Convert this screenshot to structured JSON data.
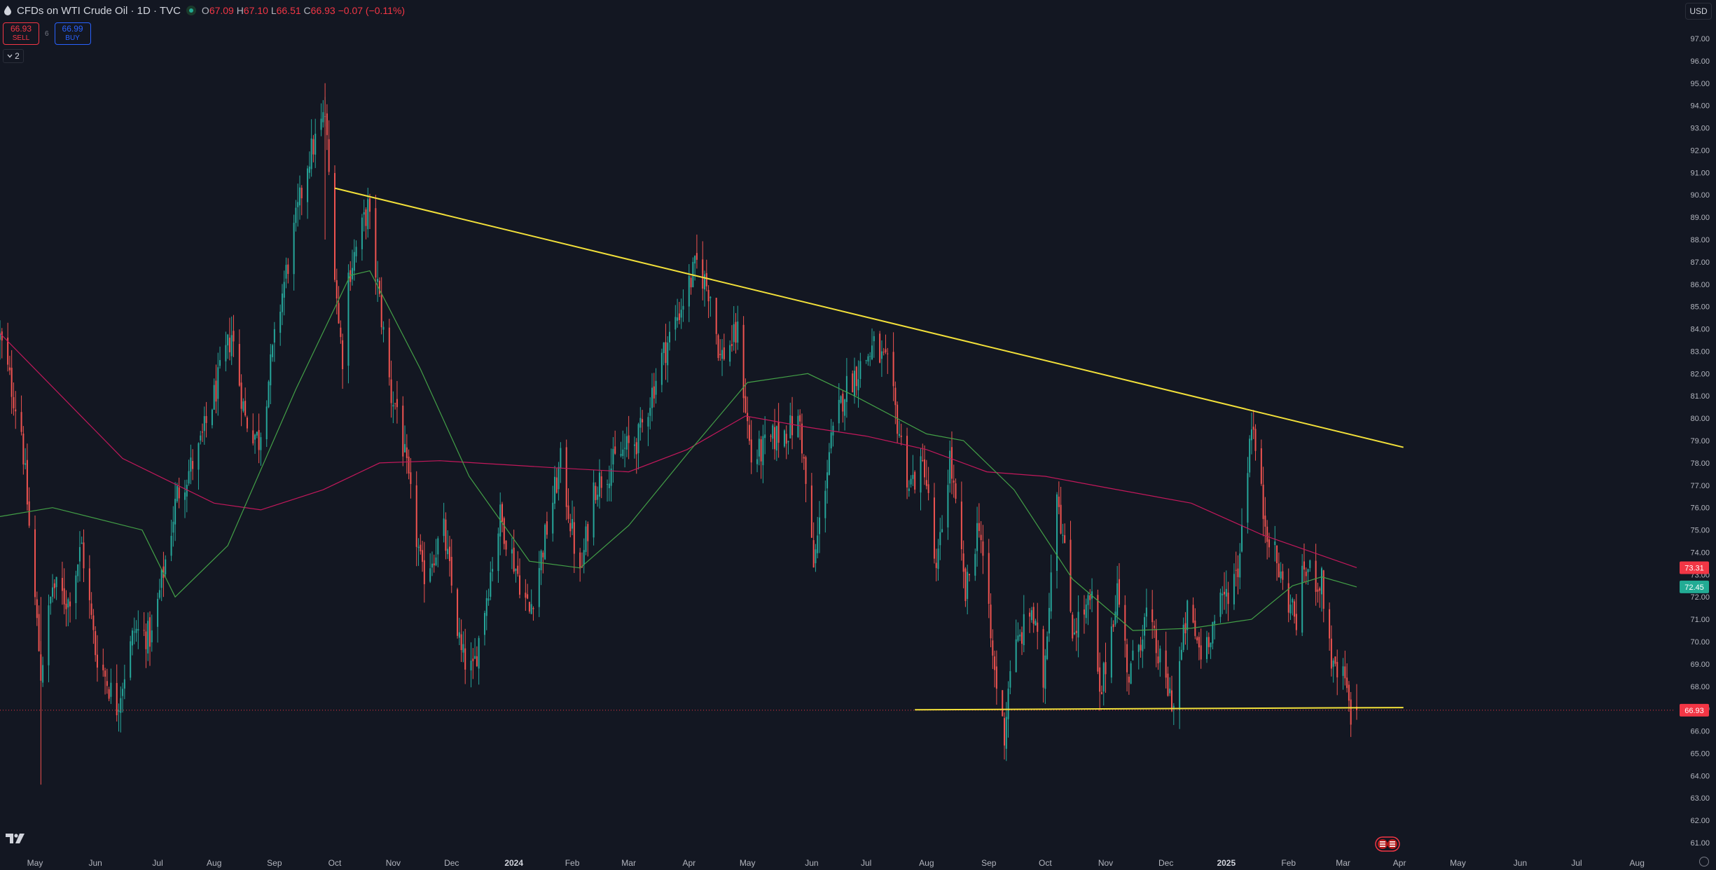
{
  "header": {
    "symbol": "CFDs on WTI Crude Oil · 1D · TVC",
    "o_label": "O",
    "o_value": "67.09",
    "h_label": "H",
    "h_value": "67.10",
    "l_label": "L",
    "l_value": "66.51",
    "c_label": "C",
    "c_value": "66.93",
    "change": "−0.07 (−0.11%)"
  },
  "trade": {
    "sell_price": "66.93",
    "sell_label": "SELL",
    "spread": "6",
    "buy_price": "66.99",
    "buy_label": "BUY"
  },
  "indicators_toggle": "2",
  "currency": "USD",
  "colors": {
    "background": "#131722",
    "up_candle": "#26a69a",
    "down_candle": "#ef5350",
    "trendline": "#f2e03a",
    "ma_red": "#c2185b",
    "ma_green": "#43a047",
    "price_label": "#f23645",
    "green_label": "#22ab94"
  },
  "chart_data": {
    "type": "candlestick",
    "ylim": [
      60.5,
      98
    ],
    "y_ticks": [
      "61.00",
      "62.00",
      "63.00",
      "64.00",
      "65.00",
      "66.00",
      "67.00",
      "68.00",
      "69.00",
      "70.00",
      "71.00",
      "72.00",
      "73.00",
      "74.00",
      "75.00",
      "76.00",
      "77.00",
      "78.00",
      "79.00",
      "80.00",
      "81.00",
      "82.00",
      "83.00",
      "84.00",
      "85.00",
      "86.00",
      "87.00",
      "88.00",
      "89.00",
      "90.00",
      "91.00",
      "92.00",
      "93.00",
      "94.00",
      "95.00",
      "96.00",
      "97.00"
    ],
    "x_ticks": [
      {
        "label": "May",
        "date": "2023-05-01",
        "bold": false
      },
      {
        "label": "Jun",
        "date": "2023-06-01",
        "bold": false
      },
      {
        "label": "Jul",
        "date": "2023-07-03",
        "bold": false
      },
      {
        "label": "Aug",
        "date": "2023-08-01",
        "bold": false
      },
      {
        "label": "Sep",
        "date": "2023-09-01",
        "bold": false
      },
      {
        "label": "Oct",
        "date": "2023-10-02",
        "bold": false
      },
      {
        "label": "Nov",
        "date": "2023-11-01",
        "bold": false
      },
      {
        "label": "Dec",
        "date": "2023-12-01",
        "bold": false
      },
      {
        "label": "2024",
        "date": "2024-01-02",
        "bold": true
      },
      {
        "label": "Feb",
        "date": "2024-02-01",
        "bold": false
      },
      {
        "label": "Mar",
        "date": "2024-03-01",
        "bold": false
      },
      {
        "label": "Apr",
        "date": "2024-04-01",
        "bold": false
      },
      {
        "label": "May",
        "date": "2024-05-01",
        "bold": false
      },
      {
        "label": "Jun",
        "date": "2024-06-03",
        "bold": false
      },
      {
        "label": "Jul",
        "date": "2024-07-01",
        "bold": false
      },
      {
        "label": "Aug",
        "date": "2024-08-01",
        "bold": false
      },
      {
        "label": "Sep",
        "date": "2024-09-02",
        "bold": false
      },
      {
        "label": "Oct",
        "date": "2024-10-01",
        "bold": false
      },
      {
        "label": "Nov",
        "date": "2024-11-01",
        "bold": false
      },
      {
        "label": "Dec",
        "date": "2024-12-02",
        "bold": false
      },
      {
        "label": "2025",
        "date": "2025-01-02",
        "bold": true
      },
      {
        "label": "Feb",
        "date": "2025-02-03",
        "bold": false
      },
      {
        "label": "Mar",
        "date": "2025-03-03",
        "bold": false
      },
      {
        "label": "Apr",
        "date": "2025-04-01",
        "bold": false
      },
      {
        "label": "May",
        "date": "2025-05-01",
        "bold": false
      },
      {
        "label": "Jun",
        "date": "2025-06-02",
        "bold": false
      },
      {
        "label": "Jul",
        "date": "2025-07-01",
        "bold": false
      },
      {
        "label": "Aug",
        "date": "2025-08-01",
        "bold": false
      }
    ],
    "x_start": "2023-04-13",
    "x_end": "2025-08-20",
    "price_anchors": [
      [
        "2023-04-13",
        83.6
      ],
      [
        "2023-04-24",
        79.5
      ],
      [
        "2023-05-04",
        68.6
      ],
      [
        "2023-05-10",
        72.5
      ],
      [
        "2023-05-18",
        71.8
      ],
      [
        "2023-05-25",
        74.3
      ],
      [
        "2023-06-01",
        69.6
      ],
      [
        "2023-06-12",
        67.1
      ],
      [
        "2023-06-21",
        70.5
      ],
      [
        "2023-06-30",
        70.2
      ],
      [
        "2023-07-13",
        76.6
      ],
      [
        "2023-07-24",
        78.5
      ],
      [
        "2023-08-10",
        83.8
      ],
      [
        "2023-08-17",
        80.0
      ],
      [
        "2023-08-24",
        79.0
      ],
      [
        "2023-09-05",
        85.6
      ],
      [
        "2023-09-18",
        91.5
      ],
      [
        "2023-09-27",
        93.6
      ],
      [
        "2023-10-04",
        84.2
      ],
      [
        "2023-10-06",
        82.8
      ],
      [
        "2023-10-09",
        86.4
      ],
      [
        "2023-10-19",
        89.4
      ],
      [
        "2023-10-31",
        81.0
      ],
      [
        "2023-11-03",
        80.5
      ],
      [
        "2023-11-16",
        72.9
      ],
      [
        "2023-11-27",
        74.9
      ],
      [
        "2023-12-06",
        69.4
      ],
      [
        "2023-12-12",
        68.6
      ],
      [
        "2023-12-26",
        75.6
      ],
      [
        "2024-01-10",
        71.3
      ],
      [
        "2024-01-26",
        78.0
      ],
      [
        "2024-02-05",
        72.8
      ],
      [
        "2024-02-12",
        76.9
      ],
      [
        "2024-02-27",
        78.5
      ],
      [
        "2024-03-06",
        79.1
      ],
      [
        "2024-03-18",
        82.7
      ],
      [
        "2024-04-05",
        86.9
      ],
      [
        "2024-04-12",
        85.6
      ],
      [
        "2024-04-17",
        82.7
      ],
      [
        "2024-04-26",
        83.8
      ],
      [
        "2024-05-03",
        78.1
      ],
      [
        "2024-05-16",
        79.2
      ],
      [
        "2024-05-28",
        79.8
      ],
      [
        "2024-06-04",
        73.3
      ],
      [
        "2024-06-12",
        78.5
      ],
      [
        "2024-06-20",
        81.3
      ],
      [
        "2024-07-05",
        83.2
      ],
      [
        "2024-07-12",
        82.2
      ],
      [
        "2024-07-23",
        77.0
      ],
      [
        "2024-07-31",
        77.9
      ],
      [
        "2024-08-06",
        72.9
      ],
      [
        "2024-08-13",
        78.3
      ],
      [
        "2024-08-21",
        72.0
      ],
      [
        "2024-08-28",
        75.5
      ],
      [
        "2024-09-04",
        69.2
      ],
      [
        "2024-09-10",
        65.8
      ],
      [
        "2024-09-13",
        69.0
      ],
      [
        "2024-09-24",
        71.5
      ],
      [
        "2024-09-30",
        68.2
      ],
      [
        "2024-10-07",
        77.1
      ],
      [
        "2024-10-15",
        70.6
      ],
      [
        "2024-10-25",
        71.8
      ],
      [
        "2024-10-29",
        67.3
      ],
      [
        "2024-11-07",
        72.4
      ],
      [
        "2024-11-13",
        68.4
      ],
      [
        "2024-11-22",
        71.2
      ],
      [
        "2024-12-02",
        68.1
      ],
      [
        "2024-12-06",
        67.2
      ],
      [
        "2024-12-13",
        71.3
      ],
      [
        "2024-12-20",
        69.5
      ],
      [
        "2024-12-31",
        71.8
      ],
      [
        "2025-01-08",
        73.3
      ],
      [
        "2025-01-15",
        80.0
      ],
      [
        "2025-01-21",
        75.8
      ],
      [
        "2025-01-31",
        72.5
      ],
      [
        "2025-02-07",
        71.0
      ],
      [
        "2025-02-11",
        73.3
      ],
      [
        "2025-02-20",
        72.6
      ],
      [
        "2025-02-26",
        68.6
      ],
      [
        "2025-03-04",
        68.3
      ],
      [
        "2025-03-07",
        66.2
      ],
      [
        "2025-03-10",
        66.9
      ]
    ],
    "series": [
      {
        "name": "",
        "kind": "ma",
        "color": "#c2185b",
        "points": [
          [
            "2023-04-13",
            83.8
          ],
          [
            "2023-06-15",
            78.2
          ],
          [
            "2023-08-01",
            76.2
          ],
          [
            "2023-08-25",
            75.9
          ],
          [
            "2023-09-26",
            76.8
          ],
          [
            "2023-10-25",
            78.0
          ],
          [
            "2023-11-25",
            78.1
          ],
          [
            "2024-01-20",
            77.8
          ],
          [
            "2024-03-01",
            77.6
          ],
          [
            "2024-03-31",
            78.6
          ],
          [
            "2024-04-30",
            80.1
          ],
          [
            "2024-06-01",
            79.6
          ],
          [
            "2024-07-01",
            79.2
          ],
          [
            "2024-08-01",
            78.6
          ],
          [
            "2024-09-01",
            77.6
          ],
          [
            "2024-10-01",
            77.4
          ],
          [
            "2024-11-01",
            76.9
          ],
          [
            "2024-12-15",
            76.2
          ],
          [
            "2025-01-20",
            74.8
          ],
          [
            "2025-03-10",
            73.31
          ]
        ]
      },
      {
        "name": "",
        "kind": "ma",
        "color": "#43a047",
        "points": [
          [
            "2023-04-13",
            75.6
          ],
          [
            "2023-05-10",
            76.0
          ],
          [
            "2023-06-25",
            75.0
          ],
          [
            "2023-07-12",
            72.0
          ],
          [
            "2023-08-08",
            74.3
          ],
          [
            "2023-09-12",
            81.3
          ],
          [
            "2023-10-10",
            86.4
          ],
          [
            "2023-10-20",
            86.6
          ],
          [
            "2023-11-15",
            82.2
          ],
          [
            "2023-12-10",
            77.4
          ],
          [
            "2024-01-10",
            73.6
          ],
          [
            "2024-02-05",
            73.3
          ],
          [
            "2024-03-01",
            75.2
          ],
          [
            "2024-04-01",
            78.5
          ],
          [
            "2024-05-01",
            81.6
          ],
          [
            "2024-06-01",
            82.0
          ],
          [
            "2024-06-25",
            81.0
          ],
          [
            "2024-08-01",
            79.3
          ],
          [
            "2024-08-20",
            79.0
          ],
          [
            "2024-09-15",
            76.8
          ],
          [
            "2024-10-15",
            72.8
          ],
          [
            "2024-11-15",
            70.5
          ],
          [
            "2024-12-15",
            70.6
          ],
          [
            "2025-01-15",
            71.0
          ],
          [
            "2025-02-05",
            72.5
          ],
          [
            "2025-02-20",
            72.9
          ],
          [
            "2025-03-10",
            72.45
          ]
        ]
      }
    ],
    "trendlines": [
      {
        "name": "",
        "from": [
          "2023-10-02",
          90.3
        ],
        "to": [
          "2025-04-03",
          78.7
        ],
        "color": "#f2e03a"
      },
      {
        "name": "",
        "from": [
          "2024-07-26",
          66.95
        ],
        "to": [
          "2025-04-03",
          67.05
        ],
        "color": "#f2e03a"
      }
    ],
    "current_price": 66.93,
    "price_labels": [
      {
        "value": "73.31",
        "color": "#f23645"
      },
      {
        "value": "72.45",
        "color": "#22ab94"
      },
      {
        "value": "66.93",
        "color": "#f23645"
      }
    ],
    "grid": false,
    "legend": "none"
  }
}
